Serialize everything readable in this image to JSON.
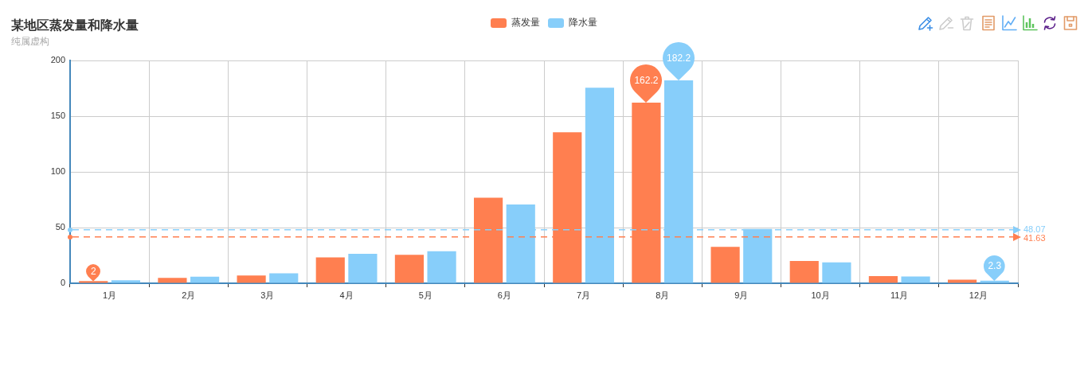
{
  "chart_data": {
    "type": "bar",
    "title": "某地区蒸发量和降水量",
    "subtitle": "纯属虚构",
    "categories": [
      "1月",
      "2月",
      "3月",
      "4月",
      "5月",
      "6月",
      "7月",
      "8月",
      "9月",
      "10月",
      "11月",
      "12月"
    ],
    "series": [
      {
        "name": "蒸发量",
        "color": "#ff7f50",
        "values": [
          2.0,
          4.9,
          7.0,
          23.2,
          25.6,
          76.7,
          135.6,
          162.2,
          32.6,
          20.0,
          6.4,
          3.3
        ],
        "value_labels": [
          "2",
          null,
          null,
          null,
          null,
          null,
          null,
          "162.2",
          null,
          null,
          null,
          null
        ]
      },
      {
        "name": "降水量",
        "color": "#87cefa",
        "values": [
          2.6,
          5.9,
          9.0,
          26.4,
          28.7,
          70.7,
          175.6,
          182.2,
          48.7,
          18.8,
          6.0,
          2.3
        ],
        "value_labels": [
          null,
          null,
          null,
          null,
          null,
          null,
          null,
          "182.2",
          null,
          null,
          null,
          "2.3"
        ]
      }
    ],
    "ylim": [
      0,
      200
    ],
    "yticks": [
      0,
      50,
      100,
      150,
      200
    ],
    "grid": true,
    "legend": "top",
    "ref_lines": [
      {
        "axis": "y",
        "value": 48.07,
        "label": "48.07",
        "color": "#87cefa",
        "line_style": "dashed"
      },
      {
        "axis": "y",
        "value": 41.63,
        "label": "41.63",
        "color": "#ff7f50",
        "line_style": "dashed"
      }
    ]
  }
}
